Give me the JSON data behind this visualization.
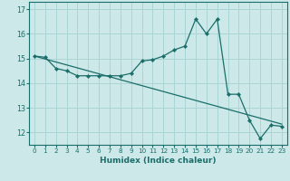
{
  "xlabel": "Humidex (Indice chaleur)",
  "bg_color": "#cce8e8",
  "line_color": "#1a6e6a",
  "grid_color": "#aad4d4",
  "x_data": [
    0,
    1,
    2,
    3,
    4,
    5,
    6,
    7,
    8,
    9,
    10,
    11,
    12,
    13,
    14,
    15,
    16,
    17,
    18,
    19,
    20,
    21,
    22,
    23
  ],
  "y_data": [
    15.1,
    15.05,
    14.6,
    14.5,
    14.3,
    14.3,
    14.3,
    14.3,
    14.3,
    14.4,
    14.9,
    14.95,
    15.1,
    15.35,
    15.5,
    16.6,
    16.0,
    16.6,
    13.55,
    13.55,
    12.5,
    11.75,
    12.3,
    12.25
  ],
  "y_straight": [
    15.1,
    14.98,
    14.86,
    14.74,
    14.62,
    14.5,
    14.38,
    14.26,
    14.14,
    14.02,
    13.9,
    13.78,
    13.66,
    13.54,
    13.42,
    13.3,
    13.18,
    13.06,
    12.94,
    12.82,
    12.7,
    12.58,
    12.46,
    12.34
  ],
  "ylim": [
    11.5,
    17.3
  ],
  "xlim": [
    -0.5,
    23.5
  ],
  "yticks": [
    12,
    13,
    14,
    15,
    16,
    17
  ],
  "xticks": [
    0,
    1,
    2,
    3,
    4,
    5,
    6,
    7,
    8,
    9,
    10,
    11,
    12,
    13,
    14,
    15,
    16,
    17,
    18,
    19,
    20,
    21,
    22,
    23
  ]
}
